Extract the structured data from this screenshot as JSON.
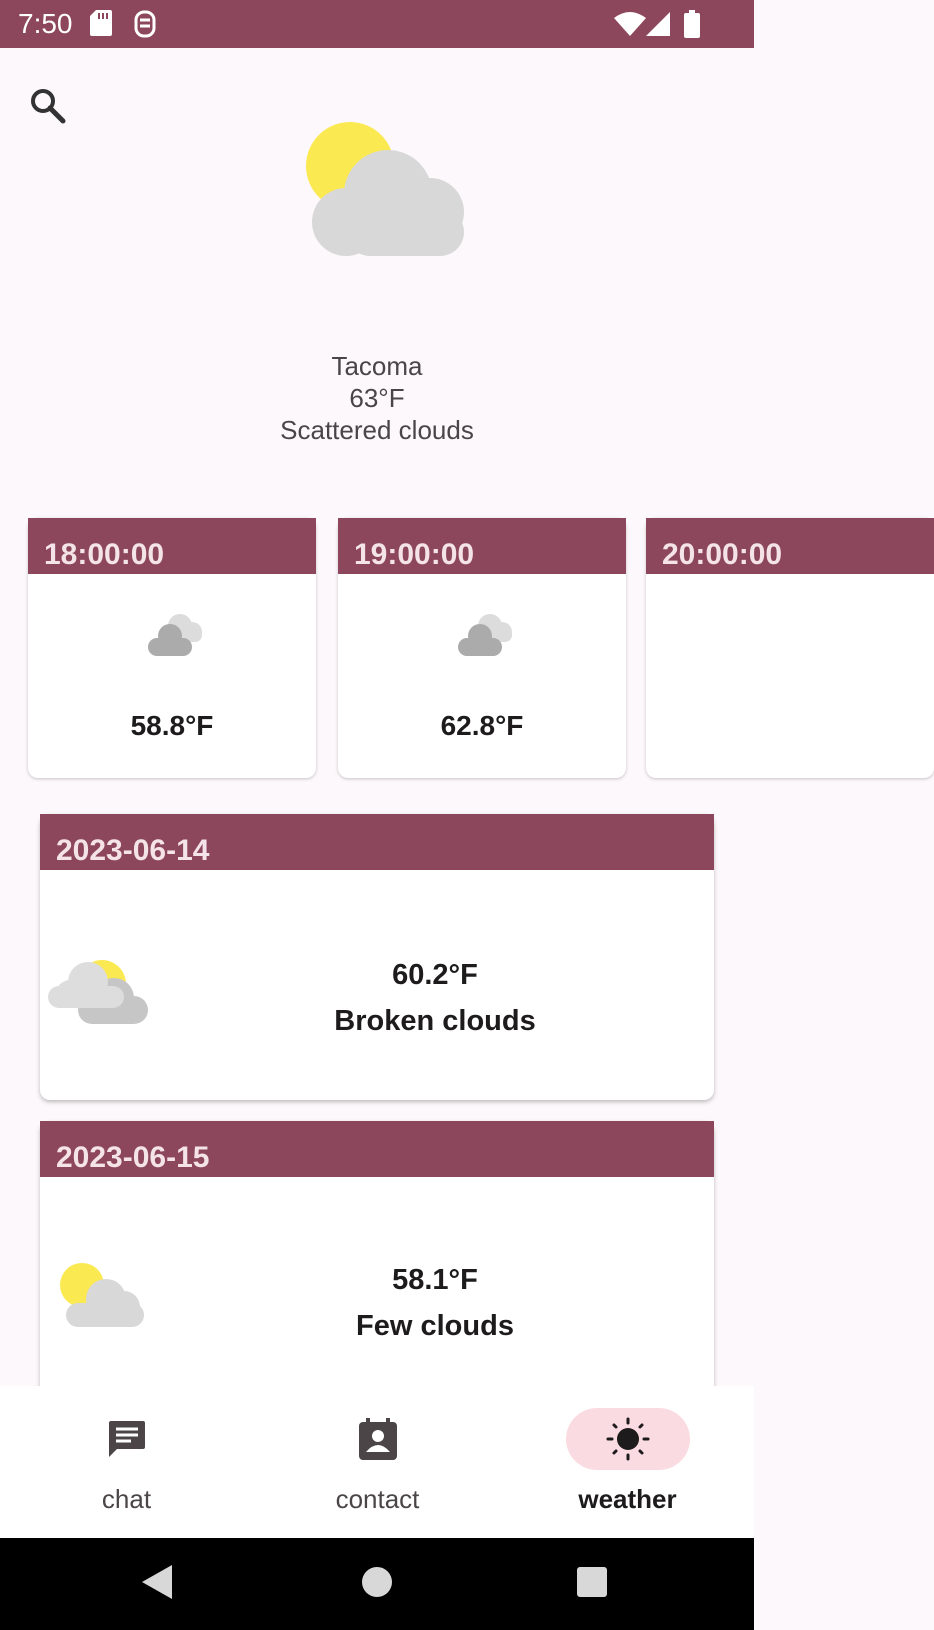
{
  "status_bar": {
    "time": "7:50",
    "icons": [
      "sd-card-icon",
      "notification-icon",
      "wifi-icon",
      "signal-icon",
      "battery-icon"
    ]
  },
  "colors": {
    "primary": "#8d475c",
    "nav_active_pill": "#fadbe1",
    "background": "#fdf8fb"
  },
  "current": {
    "city": "Tacoma",
    "temp": "63°F",
    "description": "Scattered clouds",
    "icon": "sun-cloud-icon"
  },
  "hourly": [
    {
      "time": "18:00:00",
      "temp": "58.8°F",
      "icon": "clouds-icon"
    },
    {
      "time": "19:00:00",
      "temp": "62.8°F",
      "icon": "clouds-icon"
    },
    {
      "time": "20:00:00",
      "temp": "",
      "icon": ""
    }
  ],
  "daily": [
    {
      "date": "2023-06-14",
      "temp": "60.2°F",
      "description": "Broken clouds",
      "icon": "broken-clouds-icon"
    },
    {
      "date": "2023-06-15",
      "temp": "58.1°F",
      "description": "Few clouds",
      "icon": "few-clouds-icon"
    }
  ],
  "bottom_nav": {
    "items": [
      {
        "label": "chat",
        "icon": "chat-icon",
        "active": false
      },
      {
        "label": "contact",
        "icon": "contact-icon",
        "active": false
      },
      {
        "label": "weather",
        "icon": "sun-icon",
        "active": true
      }
    ]
  },
  "system_nav": [
    "back-icon",
    "home-icon",
    "recents-icon"
  ]
}
